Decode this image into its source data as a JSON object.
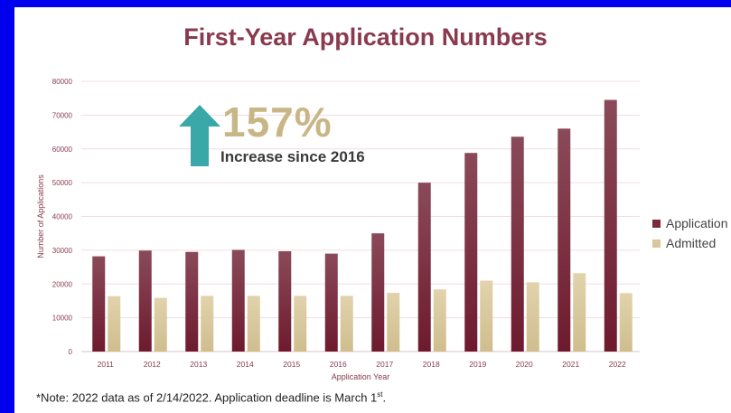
{
  "title": "First-Year Application Numbers",
  "callout": {
    "percent": "157%",
    "text": "Increase since 2016"
  },
  "note": {
    "prefix": "*Note: 2022 data as of 2/14/2022. Application deadline is March 1",
    "superscript": "st",
    "suffix": "."
  },
  "colors": {
    "application": "#7b2a3c",
    "admitted": "#d8c79d",
    "arrow": "#3aa8a8",
    "frame": "#0000ee"
  },
  "chart_data": {
    "type": "bar",
    "categories": [
      "2011",
      "2012",
      "2013",
      "2014",
      "2015",
      "2016",
      "2017",
      "2018",
      "2019",
      "2020",
      "2021",
      "2022"
    ],
    "series": [
      {
        "name": "Application",
        "values": [
          28200,
          29900,
          29500,
          30100,
          29700,
          29000,
          35000,
          50000,
          58800,
          63600,
          66000,
          74500
        ]
      },
      {
        "name": "Admitted",
        "values": [
          16400,
          15900,
          16500,
          16500,
          16500,
          16500,
          17400,
          18400,
          21000,
          20500,
          23200,
          17300
        ]
      }
    ],
    "xlabel": "Application Year",
    "ylabel": "Number of Applications",
    "ylim": [
      0,
      80000
    ],
    "yticks": [
      0,
      10000,
      20000,
      30000,
      40000,
      50000,
      60000,
      70000,
      80000
    ],
    "grid": true,
    "legend": "right"
  }
}
